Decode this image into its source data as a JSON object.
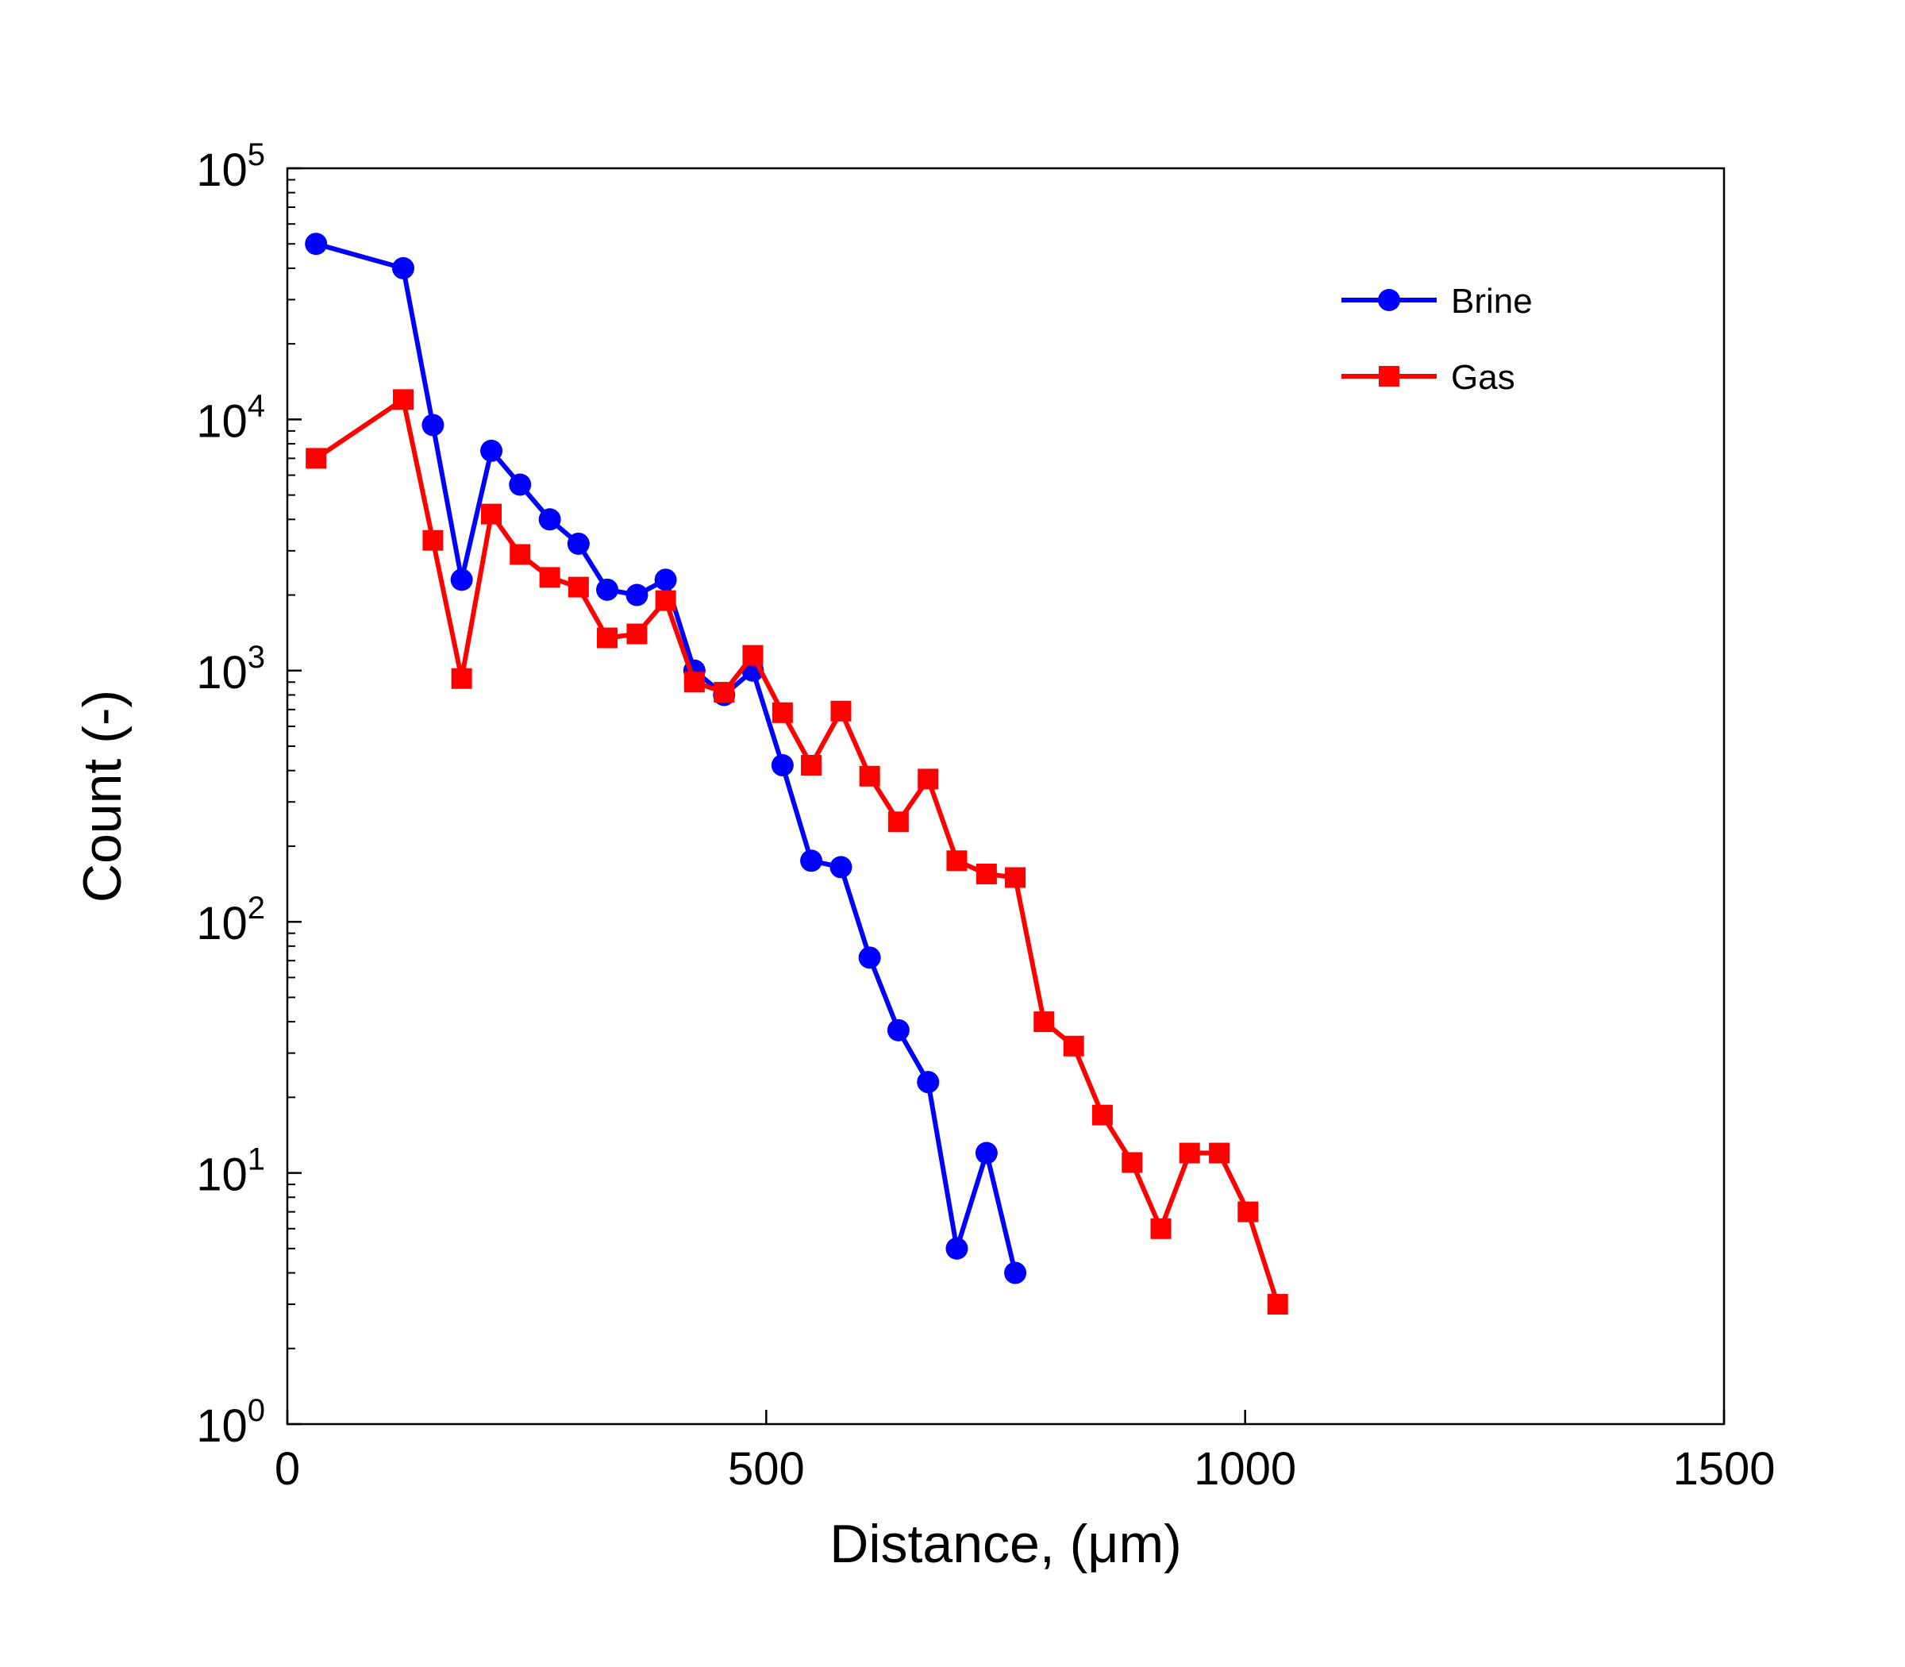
{
  "chart_data": {
    "type": "line",
    "xlabel": "Distance, (μm)",
    "ylabel": "Count (-)",
    "xlim": [
      0,
      1500
    ],
    "ylim": [
      1,
      100000
    ],
    "yscale": "log",
    "xticks": [
      0,
      500,
      1000,
      1500
    ],
    "xtick_labels": [
      "0",
      "500",
      "1000",
      "1500"
    ],
    "yticks": [
      1,
      10,
      100,
      1000,
      10000,
      100000
    ],
    "ytick_labels": [
      {
        "base": "10",
        "exp": "0"
      },
      {
        "base": "10",
        "exp": "1"
      },
      {
        "base": "10",
        "exp": "2"
      },
      {
        "base": "10",
        "exp": "3"
      },
      {
        "base": "10",
        "exp": "4"
      },
      {
        "base": "10",
        "exp": "5"
      }
    ],
    "grid": false,
    "legend_position": "top-right",
    "series": [
      {
        "name": "Brine",
        "color": "#0000ff",
        "marker": "circle",
        "x": [
          30,
          121,
          152,
          182,
          213,
          243,
          274,
          304,
          334,
          365,
          395,
          425,
          456,
          486,
          517,
          547,
          578,
          608,
          638,
          669,
          699,
          730,
          760
        ],
        "y": [
          50000,
          40000,
          9500,
          2300,
          7500,
          5500,
          4000,
          3200,
          2100,
          2000,
          2300,
          1000,
          800,
          1000,
          420,
          175,
          165,
          72,
          37,
          23,
          5,
          12,
          4
        ]
      },
      {
        "name": "Gas",
        "color": "#ff0000",
        "marker": "square",
        "x": [
          30,
          121,
          152,
          182,
          213,
          243,
          274,
          304,
          334,
          365,
          395,
          425,
          456,
          486,
          517,
          547,
          578,
          608,
          638,
          669,
          699,
          730,
          760,
          790,
          821,
          851,
          882,
          912,
          942,
          973,
          1003,
          1034
        ],
        "y": [
          7000,
          12000,
          3300,
          930,
          4200,
          2900,
          2350,
          2150,
          1350,
          1400,
          1900,
          900,
          820,
          1150,
          680,
          420,
          690,
          380,
          250,
          370,
          175,
          155,
          150,
          40,
          32,
          17,
          11,
          6,
          12,
          12,
          7,
          3
        ]
      }
    ]
  }
}
